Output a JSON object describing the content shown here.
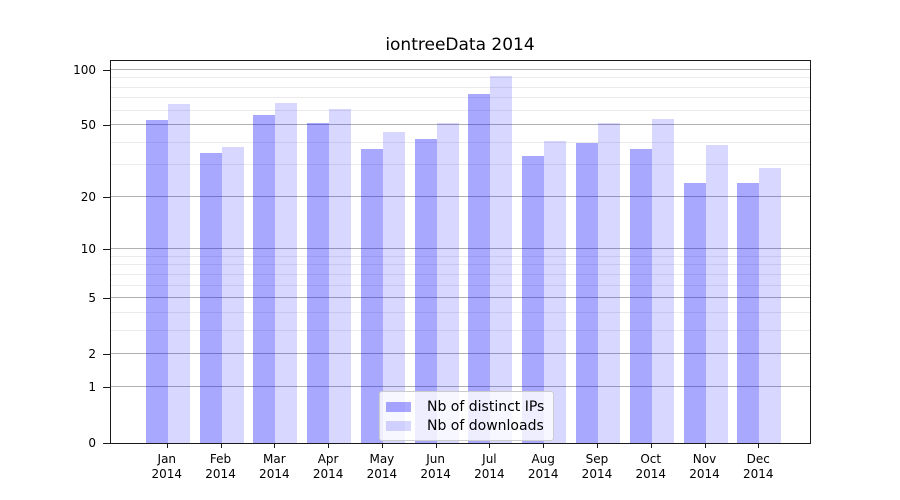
{
  "chart_data": {
    "type": "bar",
    "title": "iontreeData 2014",
    "year_label": "2014",
    "categories": [
      "Jan",
      "Feb",
      "Mar",
      "Apr",
      "May",
      "Jun",
      "Jul",
      "Aug",
      "Sep",
      "Oct",
      "Nov",
      "Dec"
    ],
    "series": [
      {
        "name": "Nb of distinct IPs",
        "color": "#aaaaff",
        "fill": "rgba(0,0,255,0.34)",
        "values": [
          53,
          35,
          57,
          51,
          37,
          42,
          74,
          34,
          40,
          37,
          24,
          24
        ]
      },
      {
        "name": "Nb of downloads",
        "color": "#d9d9ff",
        "fill": "rgba(0,0,255,0.155)",
        "values": [
          65,
          38,
          66,
          61,
          46,
          51,
          92,
          41,
          51,
          54,
          39,
          29
        ]
      }
    ],
    "xlabel": "",
    "ylabel": "",
    "yscale": "log(x+1)",
    "ylim": [
      0,
      113
    ],
    "yticks": [
      0,
      1,
      2,
      5,
      10,
      20,
      50,
      100
    ],
    "minor_gridlines": [
      3,
      4,
      6,
      7,
      8,
      9,
      30,
      40,
      60,
      70,
      80,
      90
    ],
    "grid": "on",
    "legend_position": "lower center"
  },
  "colors": {
    "grid_major": "#b0b0b0",
    "grid_minor": "#ebebeb",
    "axis": "#1a1a1a",
    "legend_border": "#cccccc",
    "background": "#ffffff"
  }
}
